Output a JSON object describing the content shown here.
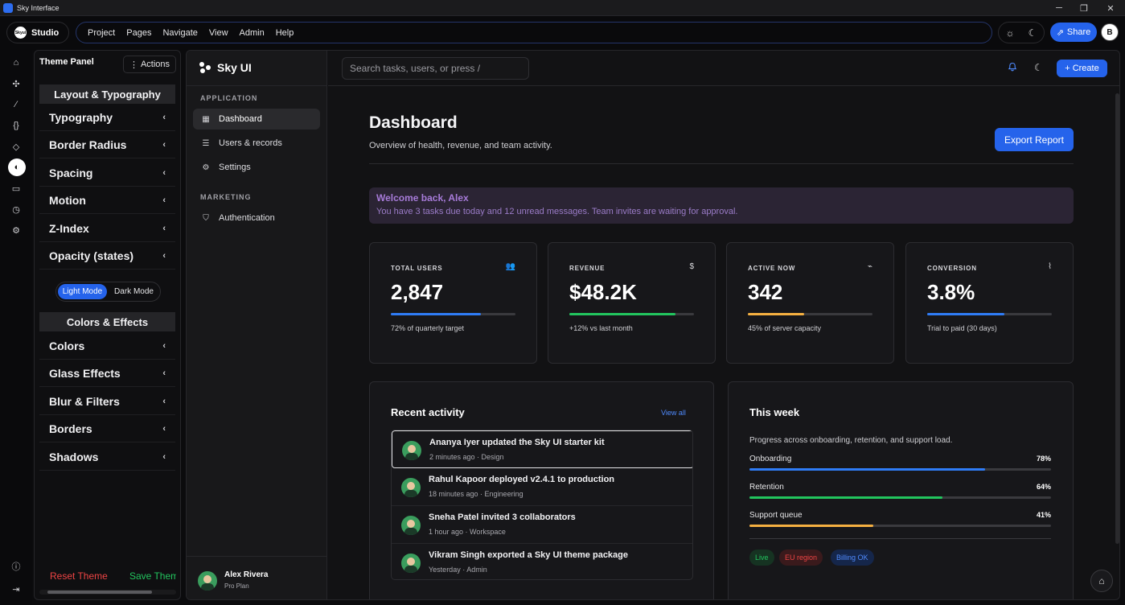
{
  "window": {
    "title": "Sky Interface",
    "min_icon": "─",
    "max_icon": "❐",
    "close_icon": "✕"
  },
  "menubar": {
    "logo_text": "Skyui",
    "studio_label": "Studio",
    "menus": [
      "Project",
      "Pages",
      "Navigate",
      "View",
      "Admin",
      "Help"
    ],
    "sun_icon": "☼",
    "moon_icon": "☾",
    "share_label": "Share",
    "share_icon": "⇗",
    "avatar_letter": "B"
  },
  "rail": {
    "icons": [
      "⌂",
      "✣",
      "⁄",
      "{}",
      "◇",
      "◐",
      "▭",
      "◷",
      "⚙",
      "ⓘ",
      "⇥"
    ]
  },
  "theme_panel": {
    "title": "Theme Panel",
    "actions_label": "Actions",
    "actions_icon": "⋮",
    "chevron": "‹",
    "section_layout": "Layout & Typography",
    "layout_items": [
      "Typography",
      "Border Radius",
      "Spacing",
      "Motion",
      "Z-Index",
      "Opacity (states)"
    ],
    "light_mode": "Light Mode",
    "dark_mode": "Dark Mode",
    "section_colors": "Colors & Effects",
    "color_items": [
      "Colors",
      "Glass Effects",
      "Blur & Filters",
      "Borders",
      "Shadows"
    ],
    "reset_label": "Reset Theme",
    "save_label": "Save Theme"
  },
  "app": {
    "brand": "Sky UI",
    "section_application": "APPLICATION",
    "nav_application": [
      {
        "label": "Dashboard",
        "icon": "▦",
        "active": true
      },
      {
        "label": "Users & records",
        "icon": "☰",
        "active": false
      },
      {
        "label": "Settings",
        "icon": "⚙",
        "active": false
      }
    ],
    "section_marketing": "MARKETING",
    "nav_marketing": [
      {
        "label": "Authentication",
        "icon": "⛉"
      }
    ],
    "user": {
      "name": "Alex Rivera",
      "plan": "Pro Plan"
    }
  },
  "topbar": {
    "search_placeholder": "Search tasks, users, or press /",
    "bell_icon": "🔔",
    "moon_icon": "☾",
    "create_label": "Create",
    "create_icon": "+"
  },
  "dashboard": {
    "title": "Dashboard",
    "subtitle": "Overview of health, revenue, and team activity.",
    "export_label": "Export Report",
    "welcome_title": "Welcome back, Alex",
    "welcome_message": "You have 3 tasks due today and 12 unread messages. Team invites are waiting for approval.",
    "cards": [
      {
        "key": "TOTAL USERS",
        "icon": "👥",
        "value": "2,847",
        "progress": 0.72,
        "color": "#2f7cf6",
        "note": "72% of quarterly target"
      },
      {
        "key": "REVENUE",
        "icon": "$",
        "value": "$48.2K",
        "progress": 0.85,
        "color": "#22c55e",
        "note": "+12% vs last month"
      },
      {
        "key": "ACTIVE NOW",
        "icon": "⌁",
        "value": "342",
        "progress": 0.45,
        "color": "#f5b041",
        "note": "45% of server capacity"
      },
      {
        "key": "CONVERSION",
        "icon": "⌇",
        "value": "3.8%",
        "progress": 0.62,
        "color": "#2f7cf6",
        "note": "Trial to paid (30 days)"
      }
    ],
    "activity": {
      "title": "Recent activity",
      "view_all": "View all",
      "items": [
        {
          "text": "Ananya Iyer updated the Sky UI starter kit",
          "meta": "2 minutes ago · Design"
        },
        {
          "text": "Rahul Kapoor deployed v2.4.1 to production",
          "meta": "18 minutes ago · Engineering"
        },
        {
          "text": "Sneha Patel invited 3 collaborators",
          "meta": "1 hour ago · Workspace"
        },
        {
          "text": "Vikram Singh exported a Sky UI theme package",
          "meta": "Yesterday · Admin"
        }
      ]
    },
    "week": {
      "title": "This week",
      "subtitle": "Progress across onboarding, retention, and support load.",
      "bars": [
        {
          "label": "Onboarding",
          "value": "78%",
          "progress": 0.78,
          "color": "#2f7cf6"
        },
        {
          "label": "Retention",
          "value": "64%",
          "progress": 0.64,
          "color": "#22c55e"
        },
        {
          "label": "Support queue",
          "value": "41%",
          "progress": 0.41,
          "color": "#f5b041"
        }
      ],
      "chips": [
        {
          "label": "Live",
          "fg": "#22c55e",
          "bg": "#163322"
        },
        {
          "label": "EU region",
          "fg": "#ef4444",
          "bg": "#3a1a1c"
        },
        {
          "label": "Billing OK",
          "fg": "#4f8bff",
          "bg": "#15264a"
        }
      ]
    },
    "fab_icon": "⌂"
  }
}
